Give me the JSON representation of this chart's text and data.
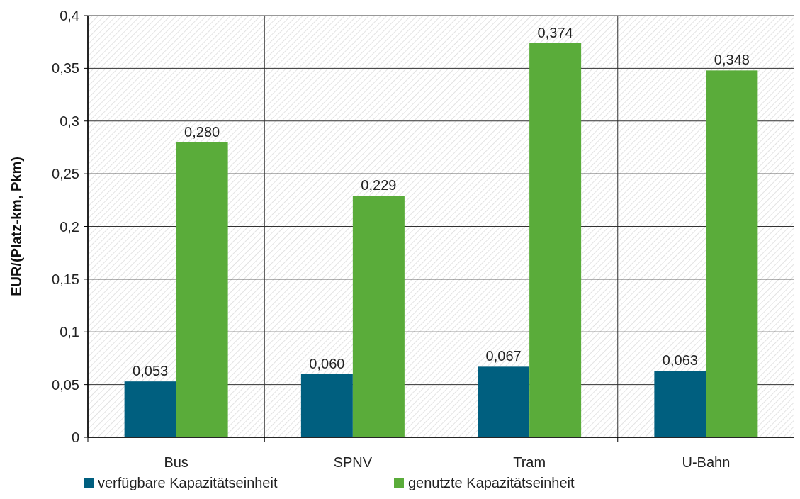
{
  "chart_data": {
    "type": "bar",
    "ylabel": "EUR/(Platz-km, Pkm)",
    "categories": [
      "Bus",
      "SPNV",
      "Tram",
      "U-Bahn"
    ],
    "series": [
      {
        "name": "verfügbare Kapazitätseinheit",
        "color": "#005f7f",
        "values": [
          0.053,
          0.06,
          0.067,
          0.063
        ],
        "value_labels": [
          "0,053",
          "0,060",
          "0,067",
          "0,063"
        ]
      },
      {
        "name": "genutzte Kapazitätseinheit",
        "color": "#5aac3a",
        "values": [
          0.28,
          0.229,
          0.374,
          0.348
        ],
        "value_labels": [
          "0,280",
          "0,229",
          "0,374",
          "0,348"
        ]
      }
    ],
    "ylim": [
      0,
      0.4
    ],
    "yticks": [
      {
        "value": 0,
        "label": "0"
      },
      {
        "value": 0.05,
        "label": "0,05"
      },
      {
        "value": 0.1,
        "label": "0,1"
      },
      {
        "value": 0.15,
        "label": "0,15"
      },
      {
        "value": 0.2,
        "label": "0,2"
      },
      {
        "value": 0.25,
        "label": "0,25"
      },
      {
        "value": 0.3,
        "label": "0,3"
      },
      {
        "value": 0.35,
        "label": "0,35"
      },
      {
        "value": 0.4,
        "label": "0,4"
      }
    ],
    "grid": true,
    "legend": "bottom"
  }
}
